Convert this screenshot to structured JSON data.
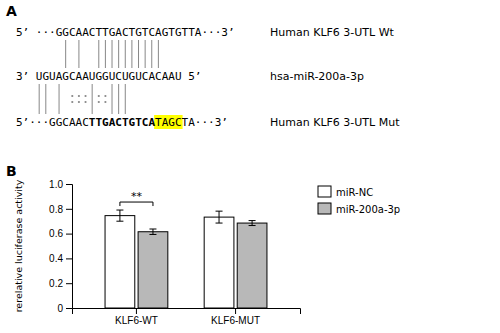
{
  "chart_data": [
    {
      "type": "sequence_alignment",
      "title": "A",
      "annotations": [
        "5’ ···GGCAACTTGACTGTCAGTGTTA···3’",
        "3’ UGUAGCAAUGGUCUGUCACAAU 5’",
        "5’···GGCAAC",
        "TTGACTGTCA",
        "TAGC",
        "TA···3’",
        "Human KLF6 3-UTL Wt",
        "hsa-miR-200a-3p",
        "Human KLF6 3-UTL Mut"
      ]
    },
    {
      "type": "bar",
      "title": "B",
      "categories": [
        "KLF6-WT",
        "KLF6-MUT"
      ],
      "series": [
        {
          "name": "miR-NC",
          "color": "white",
          "values": [
            0.745,
            0.733
          ],
          "errors": [
            0.045,
            0.048
          ]
        },
        {
          "name": "miR-200a-3p",
          "color": "#b8b8b8",
          "values": [
            0.615,
            0.685
          ],
          "errors": [
            0.022,
            0.02
          ]
        }
      ],
      "ylabel": "rerelative luciferase activity",
      "ylim": [
        0,
        1.0
      ],
      "yticks": [
        0,
        0.2,
        0.4,
        0.6,
        0.8,
        {
          "value": 1.0,
          "label": "1.0"
        }
      ],
      "annotations": [
        "**"
      ],
      "legend": "upper right",
      "grid": false
    }
  ]
}
